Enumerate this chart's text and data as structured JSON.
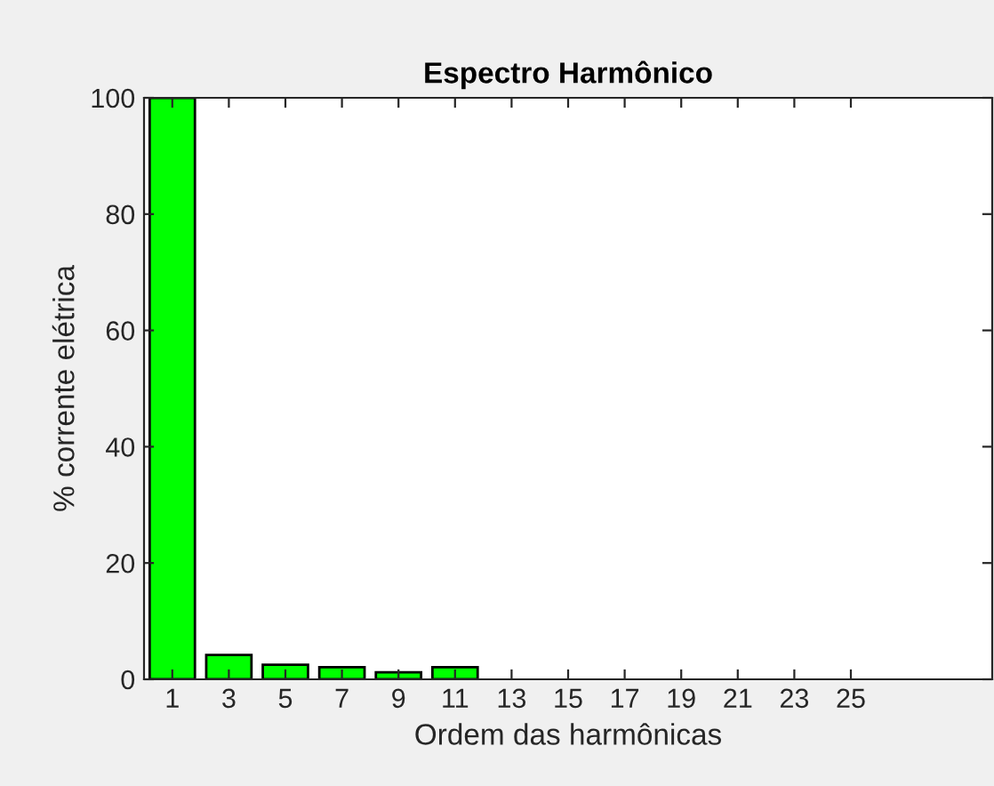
{
  "chart_data": {
    "type": "bar",
    "title": "Espectro Harmônico",
    "xlabel": "Ordem das harmônicas",
    "ylabel": "% corrente elétrica",
    "x": [
      1,
      3,
      5,
      7,
      9,
      11
    ],
    "values": [
      100,
      4.2,
      2.5,
      2.1,
      1.2,
      2.1
    ],
    "color": "#00ff00",
    "xlim": [
      0,
      30
    ],
    "xticks": [
      1,
      3,
      5,
      7,
      9,
      11,
      13,
      15,
      17,
      19,
      21,
      23,
      25
    ],
    "ylim": [
      0,
      100
    ],
    "yticks": [
      0,
      20,
      40,
      60,
      80,
      100
    ],
    "grid": false,
    "legend": false
  }
}
